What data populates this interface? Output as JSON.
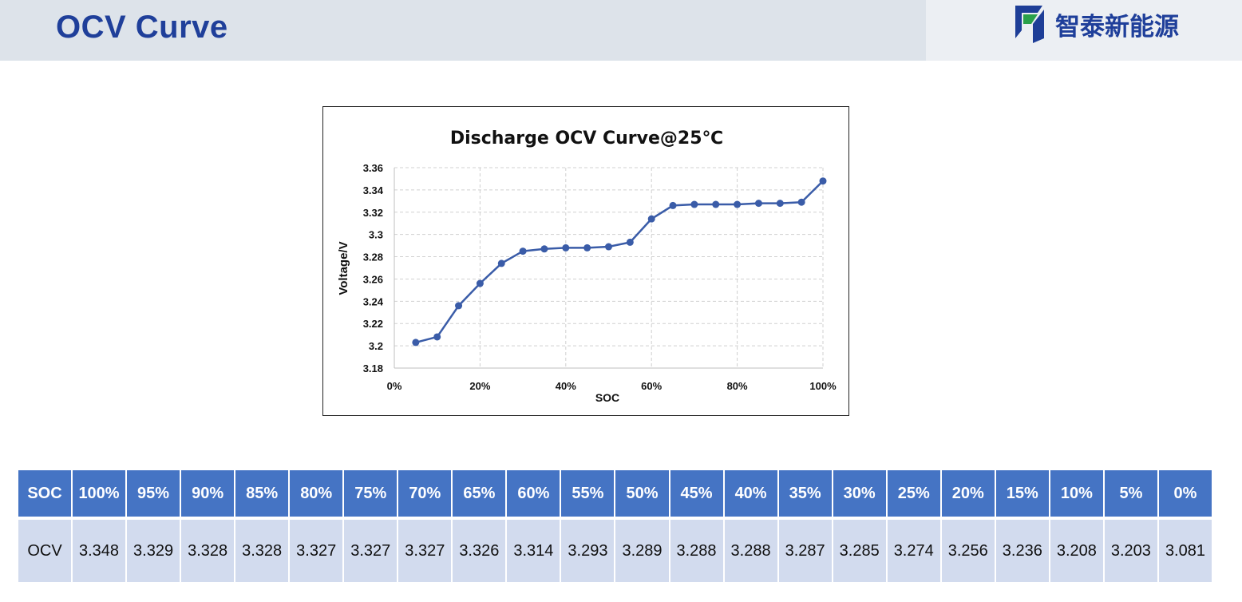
{
  "header": {
    "title": "OCV Curve",
    "logo_text": "智泰新能源"
  },
  "chart_data": {
    "type": "line",
    "title": "Discharge OCV Curve@25℃",
    "xlabel": "SOC",
    "ylabel": "Voltage/V",
    "xlim": [
      0,
      100
    ],
    "ylim": [
      3.18,
      3.36
    ],
    "x_ticks": [
      0,
      20,
      40,
      60,
      80,
      100
    ],
    "x_tick_labels": [
      "0%",
      "20%",
      "40%",
      "60%",
      "80%",
      "100%"
    ],
    "y_ticks": [
      3.18,
      3.2,
      3.22,
      3.24,
      3.26,
      3.28,
      3.3,
      3.32,
      3.34,
      3.36
    ],
    "y_tick_labels": [
      "3.18",
      "3.2",
      "3.22",
      "3.24",
      "3.26",
      "3.28",
      "3.3",
      "3.32",
      "3.34",
      "3.36"
    ],
    "grid": true,
    "line_color": "#3a5ca8",
    "x": [
      5,
      10,
      15,
      20,
      25,
      30,
      35,
      40,
      45,
      50,
      55,
      60,
      65,
      70,
      75,
      80,
      85,
      90,
      95,
      100
    ],
    "y": [
      3.203,
      3.208,
      3.236,
      3.256,
      3.274,
      3.285,
      3.287,
      3.288,
      3.288,
      3.289,
      3.293,
      3.314,
      3.326,
      3.327,
      3.327,
      3.327,
      3.328,
      3.328,
      3.329,
      3.348
    ]
  },
  "table": {
    "header_label": "SOC",
    "row_label": "OCV",
    "header_color": "#4574c4",
    "row_color": "#d2dbee",
    "columns": [
      "100%",
      "95%",
      "90%",
      "85%",
      "80%",
      "75%",
      "70%",
      "65%",
      "60%",
      "55%",
      "50%",
      "45%",
      "40%",
      "35%",
      "30%",
      "25%",
      "20%",
      "15%",
      "10%",
      "5%",
      "0%"
    ],
    "values": [
      "3.348",
      "3.329",
      "3.328",
      "3.328",
      "3.327",
      "3.327",
      "3.327",
      "3.326",
      "3.314",
      "3.293",
      "3.289",
      "3.288",
      "3.288",
      "3.287",
      "3.285",
      "3.274",
      "3.256",
      "3.236",
      "3.208",
      "3.203",
      "3.081"
    ]
  }
}
